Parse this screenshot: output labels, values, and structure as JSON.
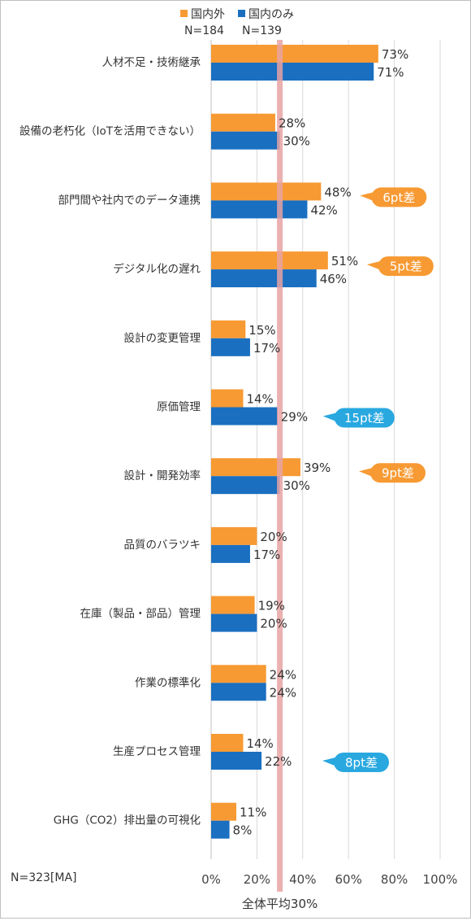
{
  "chart_data": {
    "type": "bar",
    "orientation": "horizontal",
    "categories": [
      "人材不足・技術継承",
      "設備の老朽化（IoTを活用できない）",
      "部門間や社内でのデータ連携",
      "デジタル化の遅れ",
      "設計の変更管理",
      "原価管理",
      "設計・開発効率",
      "品質のバラツキ",
      "在庫（製品・部品）管理",
      "作業の標準化",
      "生産プロセス管理",
      "GHG（CO2）排出量の可視化"
    ],
    "series": [
      {
        "name": "国内外",
        "n_label": "N=184",
        "color": "#f79a33",
        "values": [
          73,
          28,
          48,
          51,
          15,
          14,
          39,
          20,
          19,
          24,
          14,
          11
        ],
        "labels": [
          "73%",
          "28%",
          "48%",
          "51%",
          "15%",
          "14%",
          "39%",
          "20%",
          "19%",
          "24%",
          "14%",
          "11%"
        ]
      },
      {
        "name": "国内のみ",
        "n_label": "N=139",
        "color": "#1a6fc0",
        "values": [
          71,
          30,
          42,
          46,
          17,
          29,
          30,
          17,
          20,
          24,
          22,
          8
        ],
        "labels": [
          "71%",
          "30%",
          "42%",
          "46%",
          "17%",
          "29%",
          "30%",
          "17%",
          "20%",
          "24%",
          "22%",
          "8%"
        ]
      }
    ],
    "x_ticks": [
      "0%",
      "20%",
      "40%",
      "60%",
      "80%",
      "100%"
    ],
    "xlim": [
      0,
      100
    ],
    "grid": true,
    "legend_position": "top",
    "reference_line": {
      "value": 30,
      "label": "全体平均30%",
      "color": "#e8a3a3"
    },
    "callouts": [
      {
        "category_index": 2,
        "text": "6pt差",
        "color": "#f79a33"
      },
      {
        "category_index": 3,
        "text": "5pt差",
        "color": "#f79a33"
      },
      {
        "category_index": 5,
        "text": "15pt差",
        "color": "#29a8e0"
      },
      {
        "category_index": 6,
        "text": "9pt差",
        "color": "#f79a33"
      },
      {
        "category_index": 10,
        "text": "8pt差",
        "color": "#29a8e0"
      }
    ],
    "footnote": "N=323[MA]"
  }
}
